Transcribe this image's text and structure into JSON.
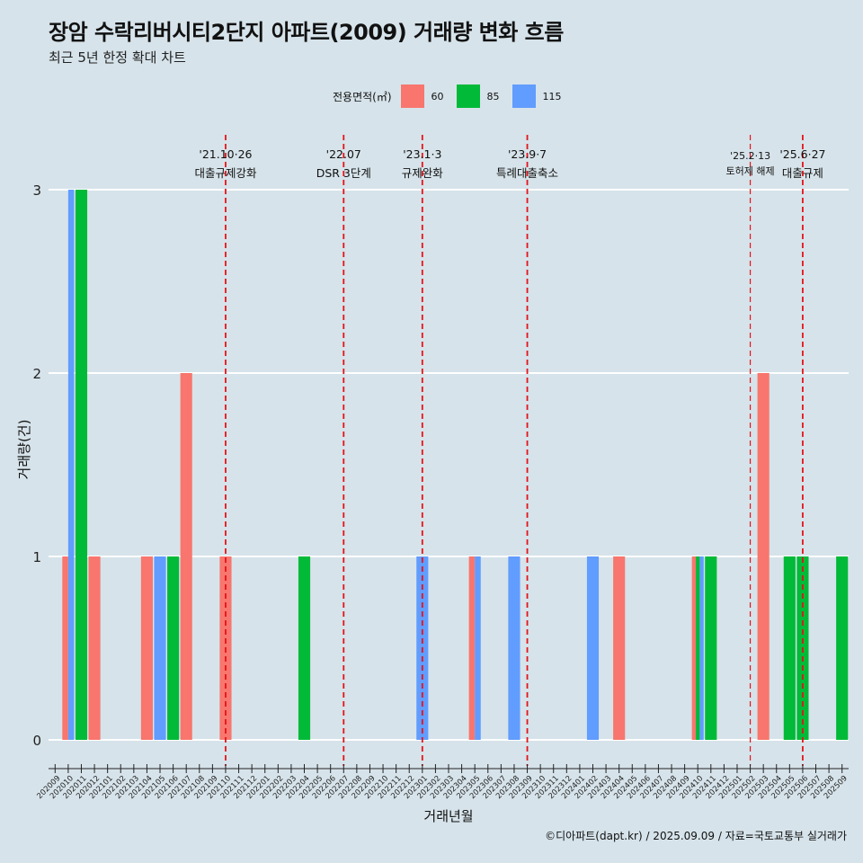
{
  "header": {
    "title": "장암 수락리버시티2단지 아파트(2009) 거래량 변화 흐름",
    "subtitle": "최근 5년 한정 확대 차트"
  },
  "legend": {
    "title": "전용면적(㎡)",
    "items": [
      {
        "label": "60",
        "color": "#f8766d"
      },
      {
        "label": "85",
        "color": "#00ba38"
      },
      {
        "label": "115",
        "color": "#619cff"
      }
    ]
  },
  "caption": "©디아파트(dapt.kr) / 2025.09.09 / 자료=국토교통부 실거래가",
  "chart_data": {
    "type": "bar",
    "xlabel": "거래년월",
    "ylabel": "거래량(건)",
    "ylim": [
      0,
      3
    ],
    "yticks": [
      0,
      1,
      2,
      3
    ],
    "categories": [
      "202009",
      "202010",
      "202011",
      "202012",
      "202101",
      "202102",
      "202103",
      "202104",
      "202105",
      "202106",
      "202107",
      "202108",
      "202109",
      "202110",
      "202111",
      "202112",
      "202201",
      "202202",
      "202203",
      "202204",
      "202205",
      "202206",
      "202207",
      "202208",
      "202209",
      "202210",
      "202211",
      "202212",
      "202301",
      "202302",
      "202303",
      "202304",
      "202305",
      "202306",
      "202307",
      "202308",
      "202309",
      "202310",
      "202311",
      "202312",
      "202401",
      "202402",
      "202403",
      "202404",
      "202405",
      "202406",
      "202407",
      "202408",
      "202409",
      "202410",
      "202411",
      "202412",
      "202501",
      "202502",
      "202503",
      "202504",
      "202505",
      "202506",
      "202507",
      "202508",
      "202509"
    ],
    "bars": [
      {
        "month": "202010",
        "area": "60",
        "count": 1
      },
      {
        "month": "202010",
        "area": "115",
        "count": 3
      },
      {
        "month": "202011",
        "area": "85",
        "count": 3
      },
      {
        "month": "202012",
        "area": "60",
        "count": 1
      },
      {
        "month": "202104",
        "area": "60",
        "count": 1
      },
      {
        "month": "202105",
        "area": "115",
        "count": 1
      },
      {
        "month": "202106",
        "area": "85",
        "count": 1
      },
      {
        "month": "202107",
        "area": "60",
        "count": 2
      },
      {
        "month": "202110",
        "area": "60",
        "count": 1
      },
      {
        "month": "202204",
        "area": "85",
        "count": 1
      },
      {
        "month": "202301",
        "area": "115",
        "count": 1
      },
      {
        "month": "202305",
        "area": "60",
        "count": 1
      },
      {
        "month": "202305",
        "area": "115",
        "count": 1
      },
      {
        "month": "202308",
        "area": "115",
        "count": 1
      },
      {
        "month": "202402",
        "area": "115",
        "count": 1
      },
      {
        "month": "202404",
        "area": "60",
        "count": 1
      },
      {
        "month": "202410",
        "area": "60",
        "count": 1
      },
      {
        "month": "202410",
        "area": "85",
        "count": 1
      },
      {
        "month": "202410",
        "area": "115",
        "count": 1
      },
      {
        "month": "202411",
        "area": "85",
        "count": 1
      },
      {
        "month": "202503",
        "area": "60",
        "count": 2
      },
      {
        "month": "202505",
        "area": "85",
        "count": 1
      },
      {
        "month": "202506",
        "area": "85",
        "count": 1
      },
      {
        "month": "202509",
        "area": "85",
        "count": 1
      }
    ],
    "annotations": [
      {
        "month": "202110",
        "date": "'21.10·26",
        "label": "대출규제강화",
        "small": false
      },
      {
        "month": "202207",
        "date": "'22.07",
        "label": "DSR 3단계",
        "small": false
      },
      {
        "month": "202301",
        "date": "'23.1·3",
        "label": "규제완화",
        "small": false
      },
      {
        "month": "202309",
        "date": "'23.9·7",
        "label": "특례대출축소",
        "small": false
      },
      {
        "month": "202502",
        "date": "'25.2·13",
        "label": "토허제 해제",
        "small": true
      },
      {
        "month": "202506",
        "date": "'25.6·27",
        "label": "대출규제",
        "small": false
      }
    ]
  }
}
